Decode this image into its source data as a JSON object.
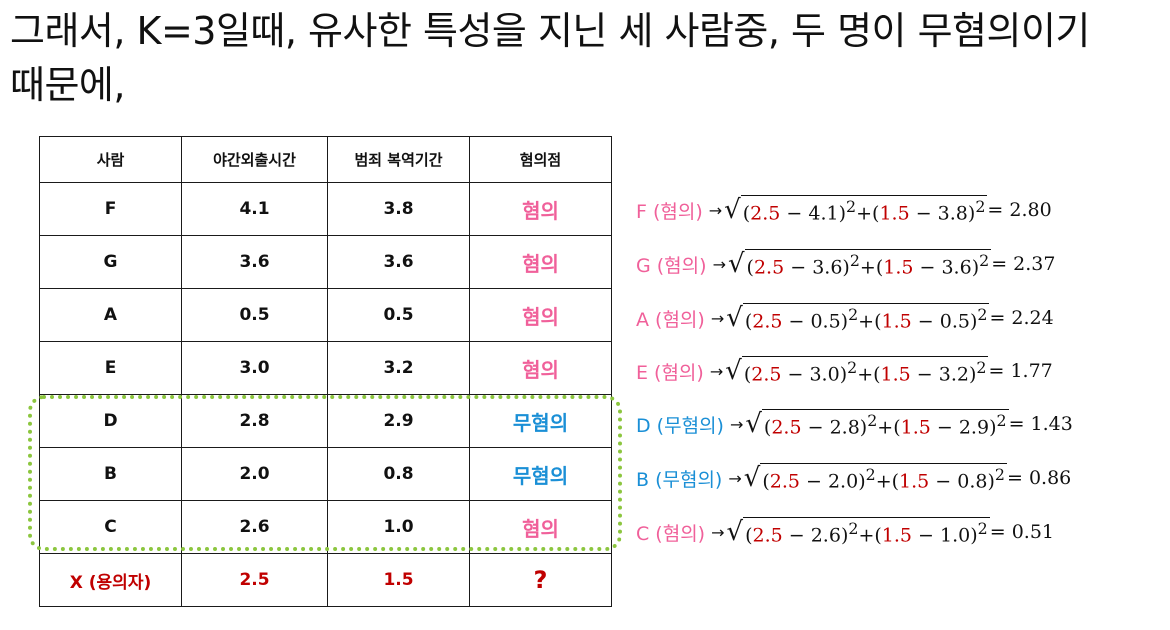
{
  "heading": {
    "line1": "그래서, K=3일때, 유사한 특성을 지닌 세 사람중, 두 명이 무혐의이기",
    "line2": "때문에,"
  },
  "table": {
    "headers": [
      "사람",
      "야간외출시간",
      "범죄 복역기간",
      "혐의점"
    ],
    "rows": [
      {
        "person": "F",
        "night_out": "4.1",
        "prison": "3.8",
        "status": "혐의",
        "status_color": "#f0609a"
      },
      {
        "person": "G",
        "night_out": "3.6",
        "prison": "3.6",
        "status": "혐의",
        "status_color": "#f0609a"
      },
      {
        "person": "A",
        "night_out": "0.5",
        "prison": "0.5",
        "status": "혐의",
        "status_color": "#f0609a"
      },
      {
        "person": "E",
        "night_out": "3.0",
        "prison": "3.2",
        "status": "혐의",
        "status_color": "#f0609a"
      },
      {
        "person": "D",
        "night_out": "2.8",
        "prison": "2.9",
        "status": "무혐의",
        "status_color": "#1a8fd6"
      },
      {
        "person": "B",
        "night_out": "2.0",
        "prison": "0.8",
        "status": "무혐의",
        "status_color": "#1a8fd6"
      },
      {
        "person": "C",
        "night_out": "2.6",
        "prison": "1.0",
        "status": "혐의",
        "status_color": "#f0609a"
      }
    ],
    "query_row": {
      "person": "X (용의자)",
      "night_out": "2.5",
      "prison": "1.5",
      "status": "?",
      "color": "#c00000"
    }
  },
  "formulas": [
    {
      "label": "F (혐의)",
      "x1": "4.1",
      "y1": "3.8",
      "result": "2.80",
      "color": "#f0609a"
    },
    {
      "label": "G (혐의)",
      "x1": "3.6",
      "y1": "3.6",
      "result": "2.37",
      "color": "#f0609a"
    },
    {
      "label": "A (혐의)",
      "x1": "0.5",
      "y1": "0.5",
      "result": "2.24",
      "color": "#f0609a"
    },
    {
      "label": "E (혐의)",
      "x1": "3.0",
      "y1": "3.2",
      "result": "1.77",
      "color": "#f0609a"
    },
    {
      "label": "D (무혐의)",
      "x1": "2.8",
      "y1": "2.9",
      "result": "1.43",
      "color": "#1a8fd6"
    },
    {
      "label": "B (무혐의)",
      "x1": "2.0",
      "y1": "0.8",
      "result": "0.86",
      "color": "#1a8fd6"
    },
    {
      "label": "C (혐의)",
      "x1": "2.6",
      "y1": "1.0",
      "result": "0.51",
      "color": "#f0609a"
    }
  ],
  "query_x": "2.5",
  "query_y": "1.5",
  "highlight_color": "#8cc63f"
}
